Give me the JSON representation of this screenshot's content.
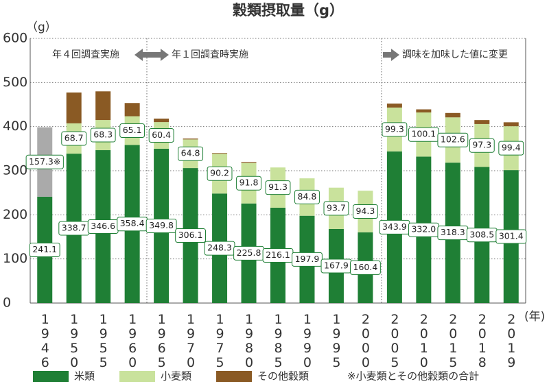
{
  "chart_data": {
    "type": "bar",
    "stacked": true,
    "title": "穀類摂取量（g）",
    "y_unit": "（g）",
    "x_unit": "(年)",
    "categories": [
      "1946",
      "1950",
      "1955",
      "1960",
      "1965",
      "1970",
      "1975",
      "1980",
      "1985",
      "1990",
      "1995",
      "2000",
      "2005",
      "2010",
      "2015",
      "2018",
      "2019"
    ],
    "series": [
      {
        "name": "米類",
        "color": "#1f7f35",
        "values": [
          241.1,
          338.7,
          346.6,
          358.4,
          349.8,
          306.1,
          248.3,
          225.8,
          216.1,
          197.9,
          167.9,
          160.4,
          343.9,
          332.0,
          318.3,
          308.5,
          301.4
        ],
        "value_labels": [
          "241.1",
          "338.7",
          "346.6",
          "358.4",
          "349.8",
          "306.1",
          "248.3",
          "225.8",
          "216.1",
          "197.9",
          "167.9",
          "160.4",
          "343.9",
          "332.0",
          "318.3",
          "308.5",
          "301.4"
        ]
      },
      {
        "name": "小麦類",
        "color": "#c9e29c",
        "values": [
          null,
          68.7,
          68.3,
          65.1,
          60.4,
          64.8,
          90.2,
          91.8,
          91.3,
          84.8,
          93.7,
          94.3,
          99.3,
          100.1,
          102.6,
          97.3,
          99.4
        ]
      },
      {
        "name": "その他穀類",
        "color": "#8a5a24",
        "values": [
          null,
          70,
          65,
          30,
          8,
          2,
          1.5,
          2,
          null,
          null,
          null,
          null,
          9,
          7,
          10,
          9,
          9
        ]
      },
      {
        "name": "※小麦類とその他穀類の合計",
        "color": "#aaaaaa",
        "legend_swatch": false,
        "values": [
          157.3,
          null,
          null,
          null,
          null,
          null,
          null,
          null,
          null,
          null,
          null,
          null,
          null,
          null,
          null,
          null,
          null
        ],
        "value_labels": [
          "157.3※",
          null,
          null,
          null,
          null,
          null,
          null,
          null,
          null,
          null,
          null,
          null,
          null,
          null,
          null,
          null,
          null
        ]
      }
    ],
    "labeled_series": [
      0,
      1,
      3
    ],
    "ylim": [
      0,
      600
    ],
    "yticks": [
      0,
      100,
      200,
      300,
      400,
      500,
      600
    ],
    "grid": true,
    "annotations": [
      "年４回調査実施",
      "年１回調査時実施",
      "調味を加味した値に変更"
    ]
  }
}
